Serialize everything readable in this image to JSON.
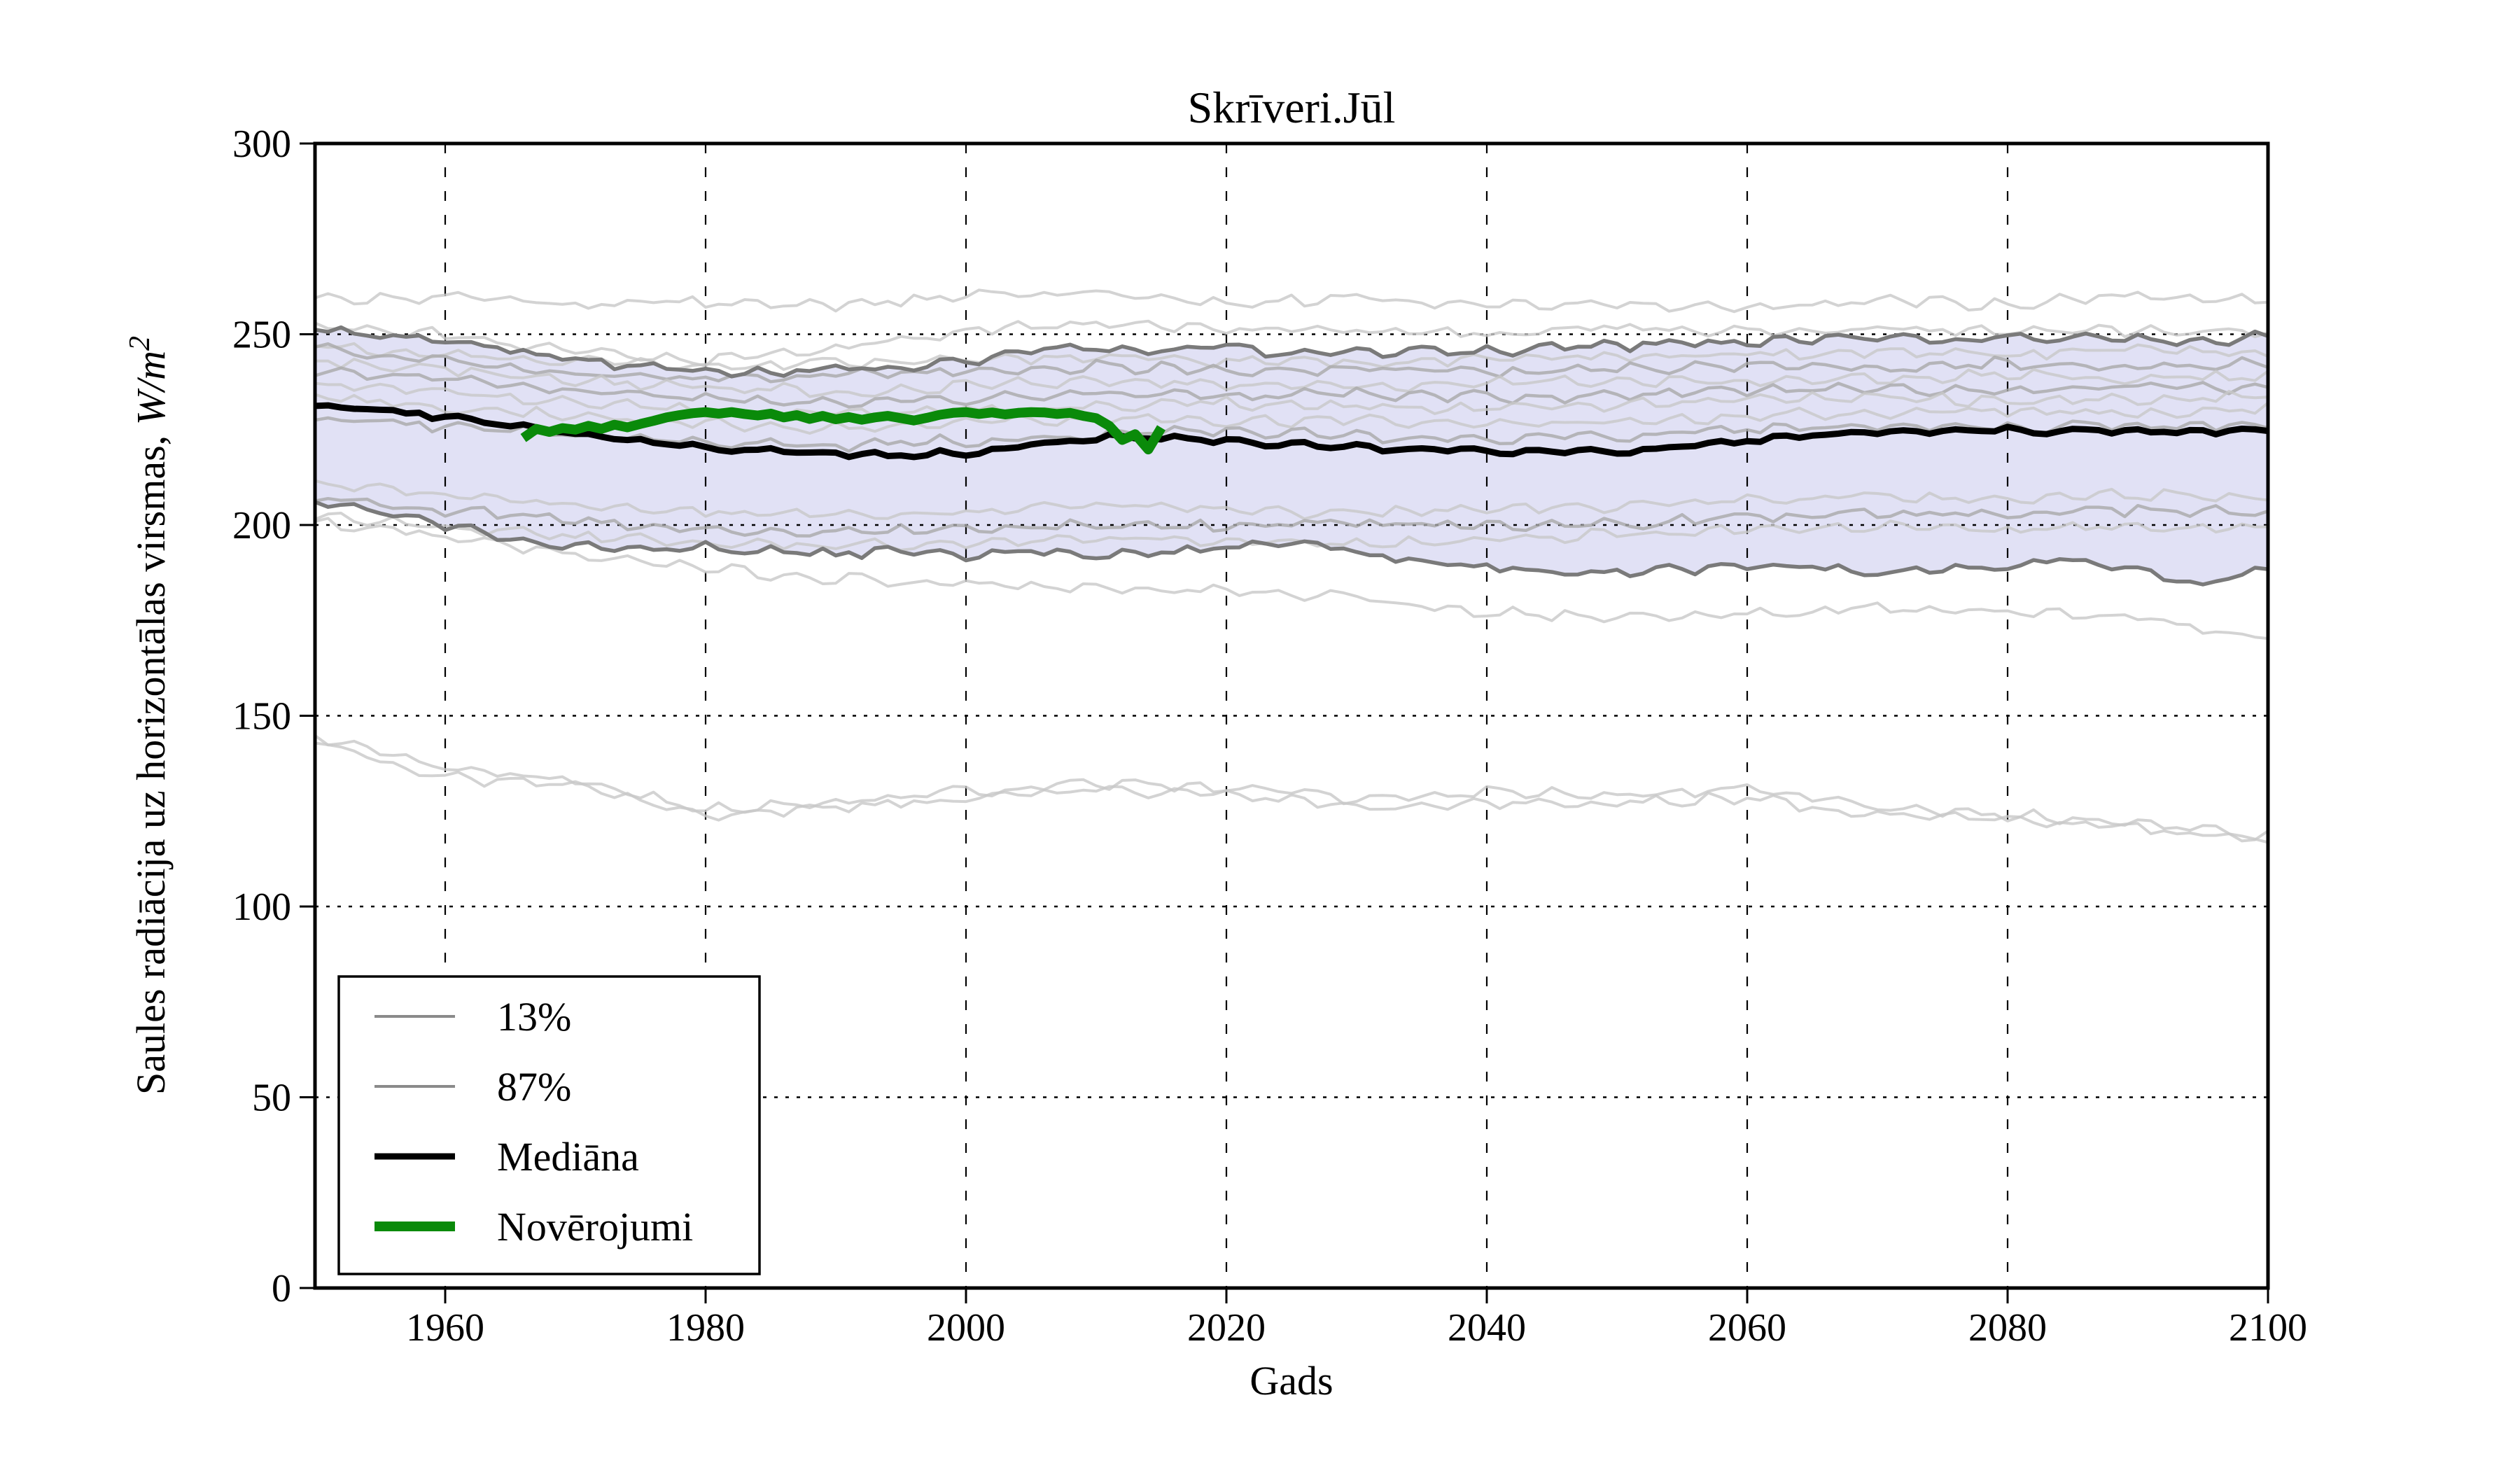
{
  "page": {
    "background": "#ffffff"
  },
  "chart_data": {
    "type": "line",
    "title": "Skrīveri.Jūl",
    "xlabel": "Gads",
    "ylabel": "Saules radiācija uz horizontālas virsmas, ",
    "ylabel_math": "W/m",
    "ylabel_sup": "2",
    "xlim": [
      1950,
      2100
    ],
    "ylim": [
      0,
      300
    ],
    "xticks": [
      1960,
      1980,
      2000,
      2020,
      2040,
      2060,
      2080,
      2100
    ],
    "yticks": [
      0,
      50,
      100,
      150,
      200,
      250,
      300
    ],
    "grid": true,
    "legend_position": "lower left",
    "colors": {
      "band_fill": "#e1e1f5",
      "band_edge": "#7a7a7a",
      "ensemble_light": "#c8c8c8",
      "ensemble_dark": "#a9a9a9",
      "median": "#000000",
      "observations": "#0a8a0a",
      "grid": "#000000",
      "frame": "#000000"
    },
    "legend": [
      {
        "label": "13%",
        "color": "#8a8a8a",
        "width": 4
      },
      {
        "label": "87%",
        "color": "#8a8a8a",
        "width": 4
      },
      {
        "label": "Mediāna",
        "color": "#000000",
        "width": 9
      },
      {
        "label": "Novērojumi",
        "color": "#0a8a0a",
        "width": 14
      }
    ],
    "band": {
      "years": [
        1950,
        1955,
        1960,
        1965,
        1970,
        1975,
        1980,
        1985,
        1990,
        1995,
        2000,
        2005,
        2010,
        2015,
        2020,
        2025,
        2030,
        2035,
        2040,
        2045,
        2050,
        2055,
        2060,
        2065,
        2070,
        2075,
        2080,
        2085,
        2090,
        2095,
        2100
      ],
      "upper": [
        251,
        250,
        248.5,
        246,
        243,
        242,
        240.5,
        240,
        241,
        241.5,
        243,
        245.5,
        246.5,
        246,
        246.5,
        244.5,
        245,
        245.5,
        245.5,
        246.5,
        247,
        247.5,
        248,
        249,
        249.5,
        248.5,
        249,
        249.5,
        249,
        248,
        249.5
      ],
      "lower": [
        206,
        203,
        200,
        196,
        195,
        193.5,
        194,
        193,
        192.5,
        193,
        192,
        193,
        192,
        193,
        194,
        195.5,
        193,
        190,
        189,
        188,
        187.5,
        188.5,
        189,
        189,
        187.5,
        188.5,
        189,
        191,
        188,
        184.5,
        188
      ]
    },
    "median": {
      "label": "Mediāna",
      "years": [
        1950,
        1955,
        1960,
        1965,
        1970,
        1975,
        1980,
        1985,
        1990,
        1995,
        2000,
        2005,
        2010,
        2015,
        2020,
        2025,
        2030,
        2035,
        2040,
        2045,
        2050,
        2055,
        2060,
        2065,
        2070,
        2075,
        2080,
        2085,
        2090,
        2095,
        2100
      ],
      "values": [
        231.5,
        230,
        228.5,
        226,
        224,
        222,
        220.5,
        219.5,
        219,
        218,
        219,
        221,
        223,
        222.5,
        222,
        221,
        220.5,
        220,
        219.5,
        219,
        219.5,
        220.5,
        222,
        223.5,
        224.5,
        224.5,
        225,
        224.5,
        225,
        224.5,
        225
      ]
    },
    "observations": {
      "label": "Novērojumi",
      "start_year": 1966,
      "values": [
        222.8,
        225.2,
        224.4,
        225.4,
        225,
        226,
        225.2,
        226.3,
        225.6,
        226.5,
        227.3,
        228.2,
        228.8,
        229.3,
        229.6,
        229.2,
        229.6,
        229.1,
        228.7,
        229.2,
        228.2,
        228.8,
        227.8,
        228.6,
        227.7,
        228.3,
        227.6,
        228.2,
        228.6,
        228,
        227.4,
        228.1,
        228.9,
        229.4,
        229.6,
        229.1,
        229.5,
        229,
        229.4,
        229.6,
        229.5,
        229.1,
        229.4,
        228.6,
        228,
        226,
        222.3,
        223.8,
        219.8,
        225.5
      ]
    },
    "ensemble": {
      "years": [
        1950,
        1960,
        1970,
        1980,
        1990,
        2000,
        2010,
        2020,
        2030,
        2040,
        2050,
        2060,
        2070,
        2080,
        2090,
        2100
      ],
      "lines": [
        {
          "shade": "light",
          "values": [
            259,
            260,
            257.5,
            258.5,
            257.5,
            260,
            261.5,
            258,
            259.5,
            257.5,
            258,
            256.5,
            259,
            257.5,
            260.5,
            258.5
          ]
        },
        {
          "shade": "light",
          "values": [
            252,
            250,
            245,
            243,
            246,
            251,
            253,
            251.5,
            251,
            250.5,
            251.5,
            251,
            251.5,
            251,
            251,
            250.5
          ]
        },
        {
          "shade": "light",
          "values": [
            247,
            244.5,
            243,
            241.5,
            242.5,
            243.5,
            244,
            243,
            242.5,
            243.5,
            244,
            244.5,
            245.5,
            244.5,
            246,
            244.5
          ]
        },
        {
          "shade": "dark",
          "values": [
            246,
            243,
            240,
            238.5,
            239.5,
            240.5,
            241.5,
            240.5,
            241,
            240,
            241,
            242,
            241,
            242.5,
            241.5,
            242.5
          ]
        },
        {
          "shade": "light",
          "values": [
            243,
            241,
            238,
            236,
            235,
            236.5,
            238,
            237,
            236,
            237,
            238,
            237.5,
            238.5,
            239.5,
            238.5,
            239
          ]
        },
        {
          "shade": "dark",
          "values": [
            240.5,
            238,
            235.5,
            233,
            232,
            233,
            234.5,
            233.5,
            234.5,
            233.5,
            234,
            235,
            236,
            235,
            236.5,
            235.5
          ]
        },
        {
          "shade": "light",
          "values": [
            237,
            234.5,
            232,
            230,
            229,
            230,
            231,
            232,
            231,
            230.5,
            231.5,
            232.5,
            233.5,
            232.5,
            233,
            234
          ]
        },
        {
          "shade": "light",
          "values": [
            233.5,
            231,
            228.5,
            226.5,
            225.5,
            226.5,
            228,
            227,
            227.5,
            226.5,
            227.5,
            228.5,
            229.5,
            230,
            229,
            230.5
          ]
        },
        {
          "shade": "dark",
          "values": [
            228,
            226,
            223.5,
            222,
            221,
            222,
            223.5,
            224.5,
            223.5,
            222.5,
            223.5,
            225,
            226,
            225.5,
            226.5,
            226
          ]
        },
        {
          "shade": "light",
          "values": [
            211,
            208,
            205.5,
            203.5,
            202.5,
            203.5,
            205,
            204,
            203,
            204,
            205,
            206.5,
            207.5,
            206.5,
            208,
            207
          ]
        },
        {
          "shade": "dark",
          "values": [
            207,
            204,
            201,
            199,
            198,
            199,
            200.5,
            199.5,
            200.5,
            199.5,
            200.5,
            202,
            203,
            202.5,
            204,
            203.5
          ]
        },
        {
          "shade": "light",
          "values": [
            202,
            199.5,
            197,
            195.5,
            194.5,
            195.5,
            197,
            196,
            195,
            196,
            197.5,
            198.5,
            199.5,
            198.5,
            200,
            199
          ]
        },
        {
          "shade": "light",
          "values": [
            201,
            197,
            192.5,
            188.5,
            186,
            184.5,
            183.5,
            182.5,
            181,
            177,
            175.5,
            176.5,
            178,
            177.5,
            175.5,
            170.5
          ]
        },
        {
          "shade": "light",
          "values": [
            145,
            136,
            133.5,
            125.5,
            127.5,
            130,
            132.5,
            131,
            128,
            130,
            129,
            131,
            126,
            124,
            122,
            118
          ]
        },
        {
          "shade": "light",
          "values": [
            142.5,
            134,
            131.5,
            124,
            126,
            128,
            130.5,
            129,
            126,
            127.5,
            127,
            128.5,
            124,
            122.5,
            120.5,
            117.5
          ]
        }
      ]
    }
  }
}
